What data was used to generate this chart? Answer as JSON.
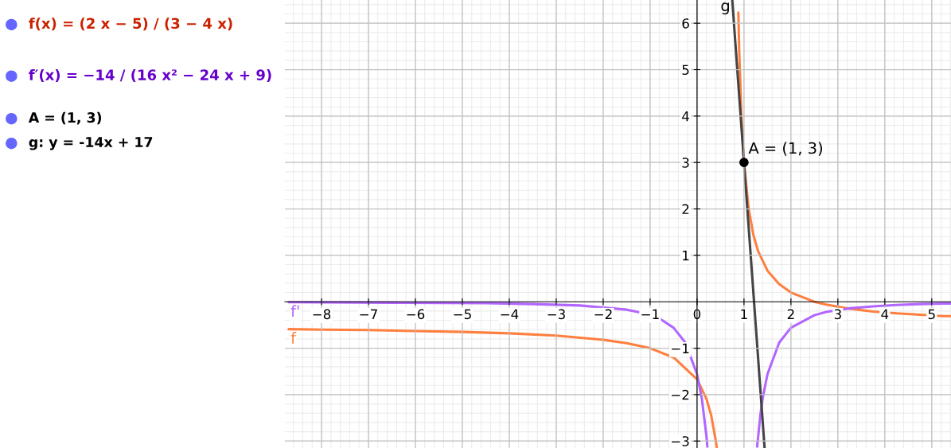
{
  "chart_data": {
    "type": "line",
    "xlim": [
      -8.78,
      5.41
    ],
    "ylim": [
      -3.15,
      6.5
    ],
    "xticks": [
      {
        "value": -8,
        "label": "−8"
      },
      {
        "value": -7,
        "label": "−7"
      },
      {
        "value": -6,
        "label": "−6"
      },
      {
        "value": -5,
        "label": "−5"
      },
      {
        "value": -4,
        "label": "−4"
      },
      {
        "value": -3,
        "label": "−3"
      },
      {
        "value": -2,
        "label": "−2"
      },
      {
        "value": -1,
        "label": "−1"
      },
      0,
      1,
      2,
      3,
      4,
      5
    ],
    "yticks": [
      {
        "value": -3,
        "label": "−3"
      },
      {
        "value": -2,
        "label": "−2"
      },
      {
        "value": -1,
        "label": "−1"
      },
      1,
      2,
      3,
      4,
      5,
      6
    ],
    "grid": true,
    "marker": "none",
    "line_style": "solid",
    "series": [
      {
        "name": "f",
        "color": "#ff7f3f",
        "x": [
          -8.7,
          -8,
          -7,
          -6,
          -5,
          -4,
          -3,
          -2,
          -1.5,
          -1,
          -0.5,
          0,
          0.2,
          0.3,
          0.4,
          0.42,
          0.75,
          0.88,
          0.9,
          0.95,
          1,
          1.1,
          1.2,
          1.3,
          1.5,
          1.75,
          2,
          2.5,
          2.75,
          3.25,
          3.75,
          4.25,
          4.75,
          5.25,
          5.4
        ],
        "values": [
          -0.59,
          -0.6,
          -0.61,
          -0.63,
          -0.65,
          -0.68,
          -0.73,
          -0.82,
          -0.89,
          -1,
          -1.2,
          -1.67,
          -2.09,
          -2.44,
          -3.0,
          -3.15,
          null,
          6.23,
          5.33,
          3.88,
          3,
          2,
          1.44,
          1.09,
          0.67,
          0.38,
          0.2,
          0,
          -0.06,
          -0.15,
          -0.21,
          -0.25,
          -0.28,
          -0.31,
          -0.31
        ]
      },
      {
        "name": "f'",
        "color": "#b266ff",
        "x": [
          -8.7,
          -6.5,
          -4.5,
          -3.5,
          -2.5,
          -1.5,
          -1.2,
          -0.8,
          -0.5,
          -0.25,
          0,
          0.1,
          0.2,
          0.22,
          0.75,
          1.28,
          1.35,
          1.4,
          1.5,
          1.75,
          2,
          2.5,
          2.75,
          3.25,
          3.5,
          3.75,
          4.25,
          4.75,
          5.25,
          5.4
        ],
        "values": [
          -0.01,
          -0.02,
          -0.03,
          -0.05,
          -0.08,
          -0.17,
          -0.23,
          -0.36,
          -0.56,
          -0.88,
          -1.56,
          -2.07,
          -2.89,
          -3.12,
          null,
          -3.12,
          -2.43,
          -2.07,
          -1.56,
          -0.88,
          -0.56,
          -0.29,
          -0.22,
          -0.14,
          -0.12,
          -0.1,
          -0.07,
          -0.05,
          -0.04,
          -0.04
        ]
      },
      {
        "name": "g",
        "color": "#444444",
        "x": [
          0.75,
          1.439
        ],
        "values": [
          6.5,
          -3.15
        ]
      },
      {
        "type": "scatter",
        "color": "#000000",
        "x": [
          1
        ],
        "values": [
          3
        ],
        "marker": "circle"
      }
    ],
    "annotations": [
      {
        "text": "A = (1, 3)",
        "x": 1,
        "y": 3
      },
      "f(x) = (2 x − 5) / (3 − 4 x)",
      "f′(x) = −14 / (16 x² − 24 x + 9)",
      "A = (1, 3)",
      "g: y = -14x + 17"
    ]
  }
}
